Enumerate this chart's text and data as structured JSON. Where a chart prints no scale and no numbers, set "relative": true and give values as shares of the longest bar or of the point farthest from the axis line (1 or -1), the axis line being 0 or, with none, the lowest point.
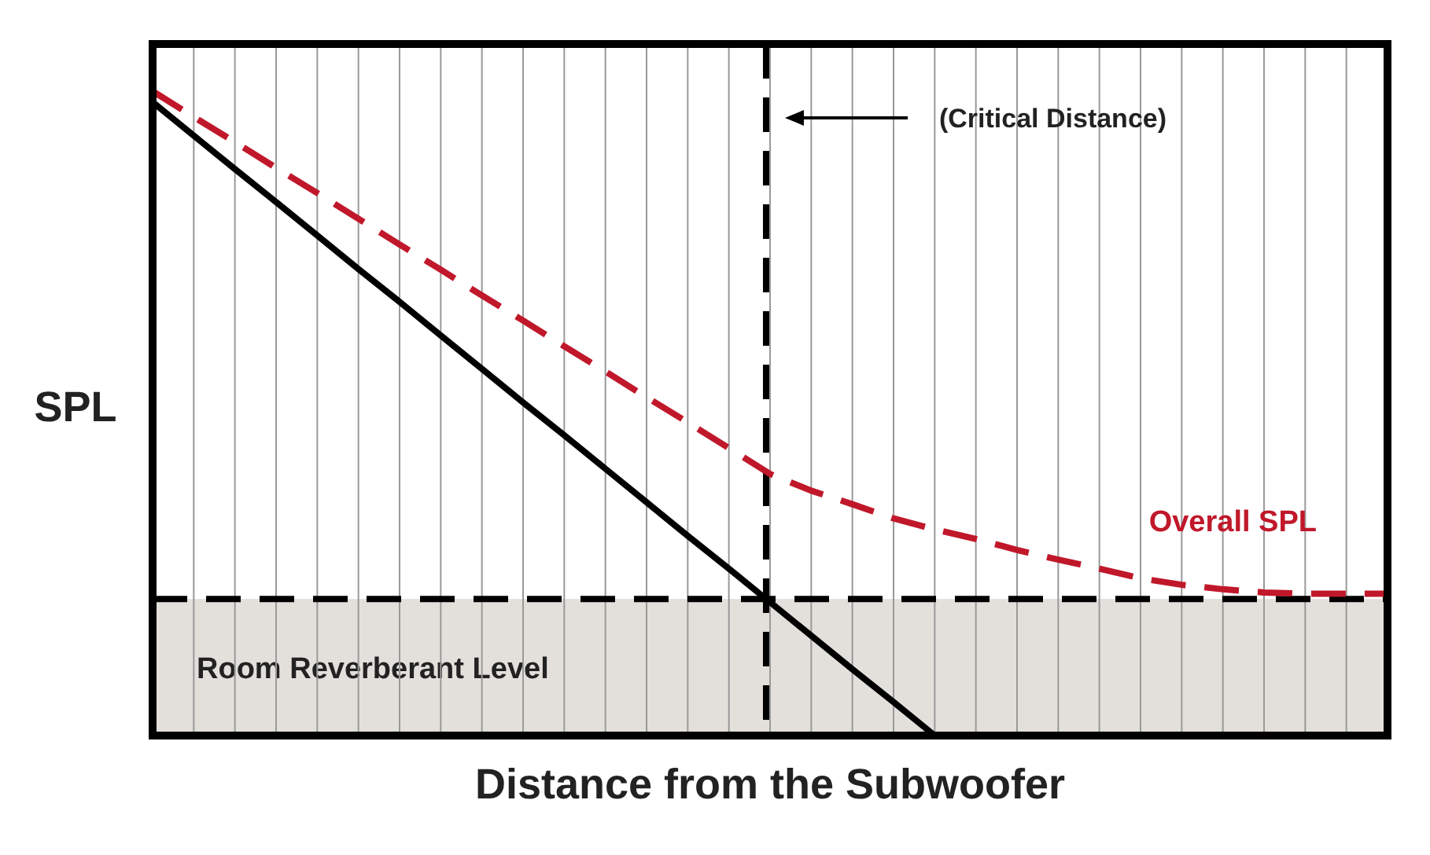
{
  "chart_data": {
    "type": "line",
    "relative": true,
    "xlabel": "Distance from the Subwoofer",
    "ylabel": "SPL",
    "grid": "x",
    "categories": [
      null,
      null,
      null,
      null,
      null,
      null,
      null,
      null,
      null,
      null,
      null,
      null,
      null,
      null,
      null,
      null,
      null,
      null,
      null,
      null,
      null,
      null,
      null,
      null,
      null,
      null,
      null,
      null,
      null,
      null,
      null
    ],
    "series": [
      {
        "color": "#000000",
        "line_style": "solid",
        "values": [
          0.983,
          0.931,
          0.879,
          0.828,
          0.776,
          0.724,
          0.673,
          0.621,
          0.569,
          0.517,
          0.466,
          0.414,
          0.362,
          0.31,
          0.259,
          0.207,
          0.155,
          0.103,
          0.052,
          0,
          null,
          null,
          null,
          null,
          null,
          null,
          null,
          null,
          null,
          null,
          null
        ]
      },
      {
        "name": "Overall SPL",
        "color": "#c0182a",
        "line_style": "dashed",
        "values": [
          1,
          0.96,
          0.921,
          0.881,
          0.842,
          0.802,
          0.762,
          0.723,
          0.683,
          0.644,
          0.604,
          0.565,
          0.525,
          0.486,
          0.446,
          0.406,
          0.38,
          0.359,
          0.337,
          0.32,
          0.305,
          0.288,
          0.273,
          0.259,
          0.244,
          0.234,
          0.227,
          0.222,
          0.22,
          0.22,
          0.22
        ]
      }
    ],
    "ref_lines": [
      {
        "axis": "y",
        "value": 0.212,
        "color": "#000000",
        "line_style": "dashed"
      }
    ],
    "annotations": [
      "(Critical Distance)"
    ],
    "bands": [
      {
        "axis": "y",
        "from": 0,
        "to": 0.212,
        "label": "Room Reverberant Level",
        "color": "#e3e0dc"
      }
    ]
  }
}
